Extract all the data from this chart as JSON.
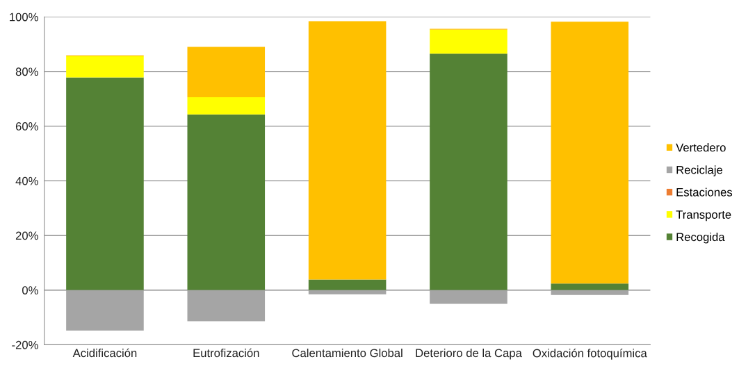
{
  "chart_data": {
    "type": "bar",
    "stacked": true,
    "categories": [
      "Acidificación",
      "Eutrofización",
      "Calentamiento Global",
      "Deterioro de la Capa",
      "Oxidación fotoquímica"
    ],
    "series": [
      {
        "name": "Recogida",
        "color": "#548235",
        "values": [
          77.8,
          64.3,
          3.9,
          86.5,
          2.4
        ]
      },
      {
        "name": "Transporte",
        "color": "#ffff00",
        "values": [
          7.8,
          6.3,
          null,
          8.8,
          null
        ]
      },
      {
        "name": "Estaciones",
        "color": "#ed7d31",
        "values": [
          null,
          null,
          null,
          null,
          null
        ]
      },
      {
        "name": "Reciclaje",
        "color": "#a5a5a5",
        "values": [
          -14.8,
          -11.4,
          -1.5,
          -5.0,
          -1.8
        ]
      },
      {
        "name": "Vertedero",
        "color": "#ffc000",
        "values": [
          0.3,
          18.4,
          94.5,
          0.3,
          95.8
        ]
      }
    ],
    "ylim": [
      -20,
      100
    ],
    "yticks": [
      {
        "value": -20,
        "label": "-20%"
      },
      {
        "value": 0,
        "label": "0%"
      },
      {
        "value": 20,
        "label": "20%"
      },
      {
        "value": 40,
        "label": "40%"
      },
      {
        "value": 60,
        "label": "60%"
      },
      {
        "value": 80,
        "label": "80%"
      },
      {
        "value": 100,
        "label": "100%"
      }
    ],
    "grid": "y",
    "legend": "right"
  }
}
